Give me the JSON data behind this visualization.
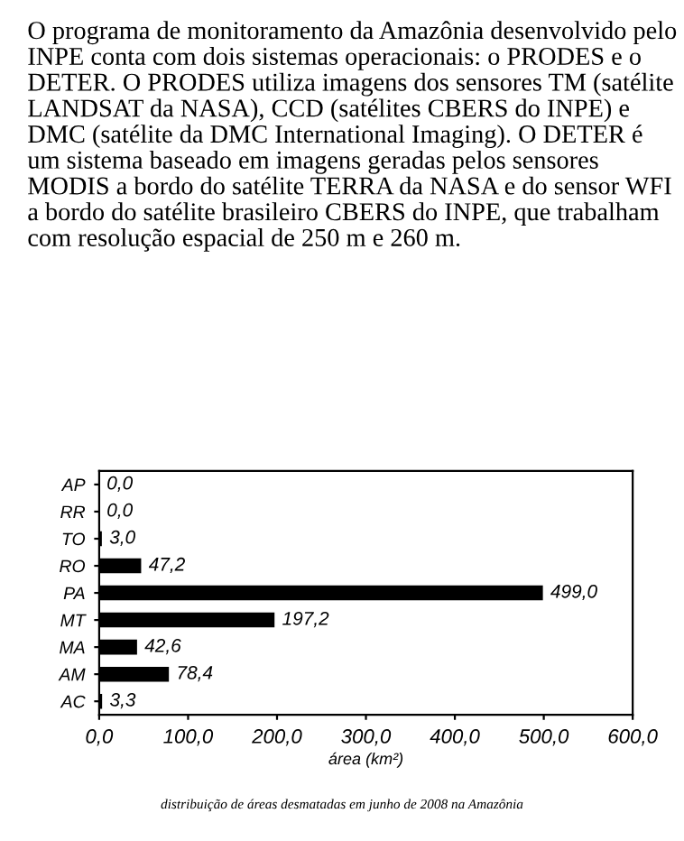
{
  "chart_data": {
    "type": "bar",
    "orientation": "horizontal",
    "annotations": [
      "O programa de monitoramento da Amazônia desenvolvido pelo INPE conta com dois sistemas operacionais: o PRODES e o DETER. O PRODES utiliza imagens dos sensores TM (satélite LANDSAT da NASA), CCD (satélites CBERS do INPE) e DMC (satélite da DMC International Imaging). O DETER é um sistema baseado em imagens geradas pelos sensores MODIS a bordo do satélite TERRA da NASA e do sensor WFI a bordo do satélite brasileiro CBERS do INPE, que trabalham com resolução espacial de 250 m e 260 m.",
      "distribuição de áreas desmatadas em junho de 2008 na Amazônia"
    ],
    "xlabel": "área (km²)",
    "categories": [
      "AP",
      "RR",
      "TO",
      "RO",
      "PA",
      "MT",
      "MA",
      "AM",
      "AC"
    ],
    "values": [
      0.0,
      0.0,
      3.0,
      47.2,
      499.0,
      197.2,
      42.6,
      78.4,
      3.3
    ],
    "value_labels": [
      "0,0",
      "0,0",
      "3,0",
      "47,2",
      "499,0",
      "197,2",
      "42,6",
      "78,4",
      "3,3"
    ],
    "color": "#000000",
    "xlim": [
      0,
      600
    ],
    "xticks": [
      {
        "value": 0,
        "label": "0,0"
      },
      {
        "value": 100,
        "label": "100,0"
      },
      {
        "value": 200,
        "label": "200,0"
      },
      {
        "value": 300,
        "label": "300,0"
      },
      {
        "value": 400,
        "label": "400,0"
      },
      {
        "value": 500,
        "label": "500,0"
      },
      {
        "value": 600,
        "label": "600,0"
      }
    ],
    "grid": false,
    "legend": false
  }
}
